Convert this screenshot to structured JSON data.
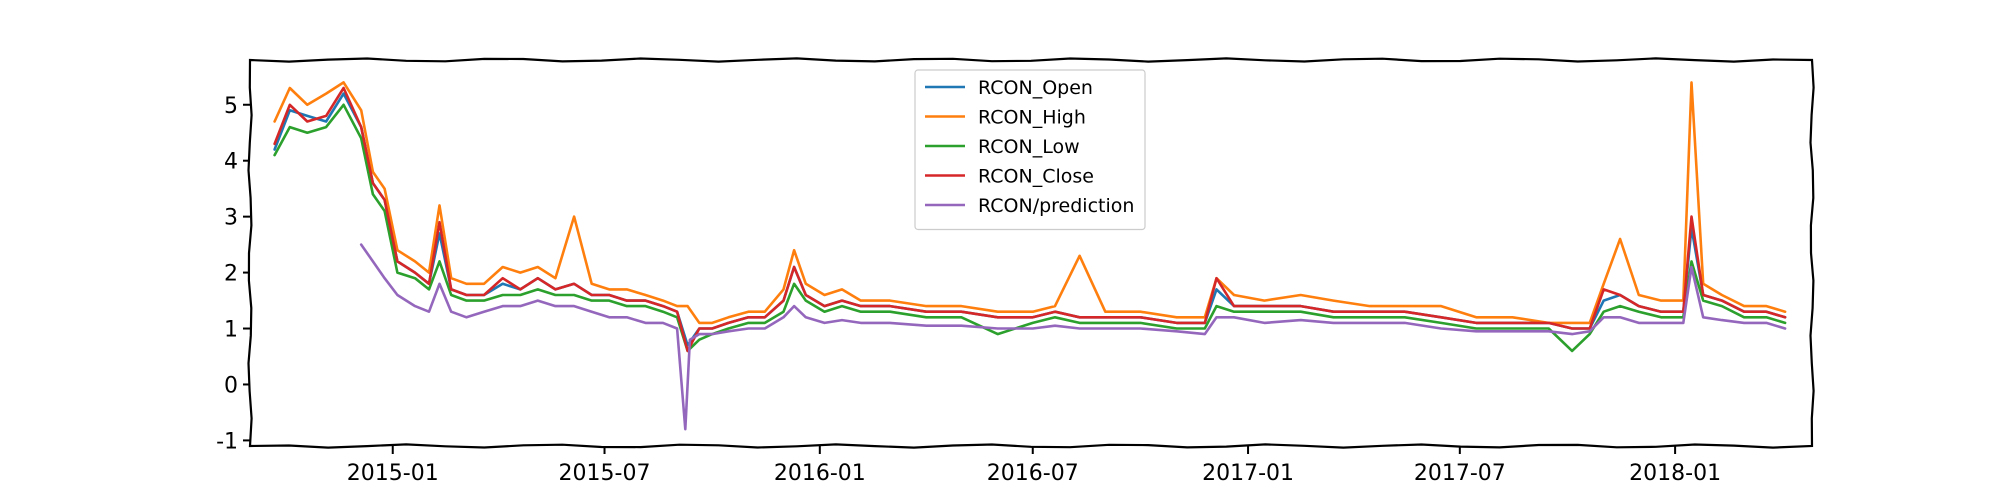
{
  "chart_data": {
    "type": "line",
    "title": "",
    "xlabel": "",
    "ylabel": "",
    "x_axis_type": "date",
    "xlim": [
      "2014-09-01",
      "2018-04-28"
    ],
    "ylim": [
      -1.1,
      5.8
    ],
    "x_ticks": [
      "2015-01",
      "2015-07",
      "2016-01",
      "2016-07",
      "2017-01",
      "2017-07",
      "2018-01"
    ],
    "y_ticks": [
      -1,
      0,
      1,
      2,
      3,
      4,
      5
    ],
    "grid": false,
    "legend_position": "top-center",
    "style": "hand-drawn",
    "series": [
      {
        "name": "RCON_Open",
        "color": "#1f77b4",
        "x": [
          "2014-09-22",
          "2014-10-05",
          "2014-10-20",
          "2014-11-05",
          "2014-11-20",
          "2014-12-05",
          "2014-12-15",
          "2014-12-25",
          "2015-01-05",
          "2015-01-20",
          "2015-02-01",
          "2015-02-10",
          "2015-02-20",
          "2015-03-05",
          "2015-03-20",
          "2015-04-05",
          "2015-04-20",
          "2015-05-05",
          "2015-05-20",
          "2015-06-05",
          "2015-06-20",
          "2015-07-05",
          "2015-07-20",
          "2015-08-05",
          "2015-08-20",
          "2015-09-01",
          "2015-09-10",
          "2015-09-20",
          "2015-10-01",
          "2015-10-15",
          "2015-11-01",
          "2015-11-15",
          "2015-12-01",
          "2015-12-10",
          "2015-12-20",
          "2016-01-05",
          "2016-01-20",
          "2016-02-05",
          "2016-03-01",
          "2016-04-01",
          "2016-05-01",
          "2016-06-01",
          "2016-07-01",
          "2016-07-20",
          "2016-08-10",
          "2016-09-01",
          "2016-10-01",
          "2016-11-01",
          "2016-11-25",
          "2016-12-05",
          "2016-12-20",
          "2017-01-15",
          "2017-02-15",
          "2017-03-15",
          "2017-04-15",
          "2017-05-15",
          "2017-06-15",
          "2017-07-15",
          "2017-08-15",
          "2017-09-15",
          "2017-10-05",
          "2017-10-20",
          "2017-11-01",
          "2017-11-15",
          "2017-12-01",
          "2017-12-20",
          "2018-01-08",
          "2018-01-15",
          "2018-01-25",
          "2018-02-10",
          "2018-03-01",
          "2018-03-20",
          "2018-04-05"
        ],
        "values": [
          4.2,
          4.9,
          4.8,
          4.7,
          5.2,
          4.6,
          3.6,
          3.3,
          2.2,
          2.0,
          1.8,
          2.7,
          1.7,
          1.6,
          1.6,
          1.8,
          1.7,
          1.9,
          1.7,
          1.8,
          1.6,
          1.6,
          1.5,
          1.5,
          1.4,
          1.3,
          0.7,
          1.0,
          1.0,
          1.1,
          1.2,
          1.2,
          1.5,
          2.1,
          1.6,
          1.4,
          1.5,
          1.4,
          1.4,
          1.3,
          1.3,
          1.2,
          1.2,
          1.3,
          1.2,
          1.2,
          1.2,
          1.1,
          1.1,
          1.7,
          1.4,
          1.4,
          1.4,
          1.3,
          1.3,
          1.3,
          1.2,
          1.1,
          1.1,
          1.1,
          1.0,
          1.0,
          1.5,
          1.6,
          1.4,
          1.3,
          1.3,
          2.8,
          1.6,
          1.5,
          1.3,
          1.3,
          1.2
        ]
      },
      {
        "name": "RCON_High",
        "color": "#ff7f0e",
        "x": [
          "2014-09-22",
          "2014-10-05",
          "2014-10-20",
          "2014-11-05",
          "2014-11-20",
          "2014-12-05",
          "2014-12-15",
          "2014-12-25",
          "2015-01-05",
          "2015-01-20",
          "2015-02-01",
          "2015-02-10",
          "2015-02-20",
          "2015-03-05",
          "2015-03-20",
          "2015-04-05",
          "2015-04-20",
          "2015-05-05",
          "2015-05-20",
          "2015-06-05",
          "2015-06-20",
          "2015-07-05",
          "2015-07-20",
          "2015-08-05",
          "2015-08-20",
          "2015-09-01",
          "2015-09-10",
          "2015-09-20",
          "2015-10-01",
          "2015-10-15",
          "2015-11-01",
          "2015-11-15",
          "2015-12-01",
          "2015-12-10",
          "2015-12-20",
          "2016-01-05",
          "2016-01-20",
          "2016-02-05",
          "2016-03-01",
          "2016-04-01",
          "2016-05-01",
          "2016-06-01",
          "2016-07-01",
          "2016-07-20",
          "2016-08-10",
          "2016-09-01",
          "2016-10-01",
          "2016-11-01",
          "2016-11-25",
          "2016-12-05",
          "2016-12-20",
          "2017-01-15",
          "2017-02-15",
          "2017-03-15",
          "2017-04-15",
          "2017-05-15",
          "2017-06-15",
          "2017-07-15",
          "2017-08-15",
          "2017-09-15",
          "2017-10-05",
          "2017-10-20",
          "2017-11-01",
          "2017-11-15",
          "2017-12-01",
          "2017-12-20",
          "2018-01-08",
          "2018-01-15",
          "2018-01-25",
          "2018-02-10",
          "2018-03-01",
          "2018-03-20",
          "2018-04-05"
        ],
        "values": [
          4.7,
          5.3,
          5.0,
          5.2,
          5.4,
          4.9,
          3.8,
          3.5,
          2.4,
          2.2,
          2.0,
          3.2,
          1.9,
          1.8,
          1.8,
          2.1,
          2.0,
          2.1,
          1.9,
          3.0,
          1.8,
          1.7,
          1.7,
          1.6,
          1.5,
          1.4,
          1.4,
          1.1,
          1.1,
          1.2,
          1.3,
          1.3,
          1.7,
          2.4,
          1.8,
          1.6,
          1.7,
          1.5,
          1.5,
          1.4,
          1.4,
          1.3,
          1.3,
          1.4,
          2.3,
          1.3,
          1.3,
          1.2,
          1.2,
          1.9,
          1.6,
          1.5,
          1.6,
          1.5,
          1.4,
          1.4,
          1.4,
          1.2,
          1.2,
          1.1,
          1.1,
          1.1,
          1.8,
          2.6,
          1.6,
          1.5,
          1.5,
          5.4,
          1.8,
          1.6,
          1.4,
          1.4,
          1.3
        ]
      },
      {
        "name": "RCON_Low",
        "color": "#2ca02c",
        "x": [
          "2014-09-22",
          "2014-10-05",
          "2014-10-20",
          "2014-11-05",
          "2014-11-20",
          "2014-12-05",
          "2014-12-15",
          "2014-12-25",
          "2015-01-05",
          "2015-01-20",
          "2015-02-01",
          "2015-02-10",
          "2015-02-20",
          "2015-03-05",
          "2015-03-20",
          "2015-04-05",
          "2015-04-20",
          "2015-05-05",
          "2015-05-20",
          "2015-06-05",
          "2015-06-20",
          "2015-07-05",
          "2015-07-20",
          "2015-08-05",
          "2015-08-20",
          "2015-09-01",
          "2015-09-10",
          "2015-09-20",
          "2015-10-01",
          "2015-10-15",
          "2015-11-01",
          "2015-11-15",
          "2015-12-01",
          "2015-12-10",
          "2015-12-20",
          "2016-01-05",
          "2016-01-20",
          "2016-02-05",
          "2016-03-01",
          "2016-04-01",
          "2016-05-01",
          "2016-06-01",
          "2016-07-01",
          "2016-07-20",
          "2016-08-10",
          "2016-09-01",
          "2016-10-01",
          "2016-11-01",
          "2016-11-25",
          "2016-12-05",
          "2016-12-20",
          "2017-01-15",
          "2017-02-15",
          "2017-03-15",
          "2017-04-15",
          "2017-05-15",
          "2017-06-15",
          "2017-07-15",
          "2017-08-15",
          "2017-09-15",
          "2017-10-05",
          "2017-10-20",
          "2017-11-01",
          "2017-11-15",
          "2017-12-01",
          "2017-12-20",
          "2018-01-08",
          "2018-01-15",
          "2018-01-25",
          "2018-02-10",
          "2018-03-01",
          "2018-03-20",
          "2018-04-05"
        ],
        "values": [
          4.1,
          4.6,
          4.5,
          4.6,
          5.0,
          4.4,
          3.4,
          3.1,
          2.0,
          1.9,
          1.7,
          2.2,
          1.6,
          1.5,
          1.5,
          1.6,
          1.6,
          1.7,
          1.6,
          1.6,
          1.5,
          1.5,
          1.4,
          1.4,
          1.3,
          1.2,
          0.6,
          0.8,
          0.9,
          1.0,
          1.1,
          1.1,
          1.3,
          1.8,
          1.5,
          1.3,
          1.4,
          1.3,
          1.3,
          1.2,
          1.2,
          0.9,
          1.1,
          1.2,
          1.1,
          1.1,
          1.1,
          1.0,
          1.0,
          1.4,
          1.3,
          1.3,
          1.3,
          1.2,
          1.2,
          1.2,
          1.1,
          1.0,
          1.0,
          1.0,
          0.6,
          0.9,
          1.3,
          1.4,
          1.3,
          1.2,
          1.2,
          2.2,
          1.5,
          1.4,
          1.2,
          1.2,
          1.1
        ]
      },
      {
        "name": "RCON_Close",
        "color": "#d62728",
        "x": [
          "2014-09-22",
          "2014-10-05",
          "2014-10-20",
          "2014-11-05",
          "2014-11-20",
          "2014-12-05",
          "2014-12-15",
          "2014-12-25",
          "2015-01-05",
          "2015-01-20",
          "2015-02-01",
          "2015-02-10",
          "2015-02-20",
          "2015-03-05",
          "2015-03-20",
          "2015-04-05",
          "2015-04-20",
          "2015-05-05",
          "2015-05-20",
          "2015-06-05",
          "2015-06-20",
          "2015-07-05",
          "2015-07-20",
          "2015-08-05",
          "2015-08-20",
          "2015-09-01",
          "2015-09-10",
          "2015-09-20",
          "2015-10-01",
          "2015-10-15",
          "2015-11-01",
          "2015-11-15",
          "2015-12-01",
          "2015-12-10",
          "2015-12-20",
          "2016-01-05",
          "2016-01-20",
          "2016-02-05",
          "2016-03-01",
          "2016-04-01",
          "2016-05-01",
          "2016-06-01",
          "2016-07-01",
          "2016-07-20",
          "2016-08-10",
          "2016-09-01",
          "2016-10-01",
          "2016-11-01",
          "2016-11-25",
          "2016-12-05",
          "2016-12-20",
          "2017-01-15",
          "2017-02-15",
          "2017-03-15",
          "2017-04-15",
          "2017-05-15",
          "2017-06-15",
          "2017-07-15",
          "2017-08-15",
          "2017-09-15",
          "2017-10-05",
          "2017-10-20",
          "2017-11-01",
          "2017-11-15",
          "2017-12-01",
          "2017-12-20",
          "2018-01-08",
          "2018-01-15",
          "2018-01-25",
          "2018-02-10",
          "2018-03-01",
          "2018-03-20",
          "2018-04-05"
        ],
        "values": [
          4.3,
          5.0,
          4.7,
          4.8,
          5.3,
          4.6,
          3.6,
          3.3,
          2.2,
          2.0,
          1.8,
          2.9,
          1.7,
          1.6,
          1.6,
          1.9,
          1.7,
          1.9,
          1.7,
          1.8,
          1.6,
          1.6,
          1.5,
          1.5,
          1.4,
          1.3,
          0.6,
          1.0,
          1.0,
          1.1,
          1.2,
          1.2,
          1.5,
          2.1,
          1.6,
          1.4,
          1.5,
          1.4,
          1.4,
          1.3,
          1.3,
          1.2,
          1.2,
          1.3,
          1.2,
          1.2,
          1.2,
          1.1,
          1.1,
          1.9,
          1.4,
          1.4,
          1.4,
          1.3,
          1.3,
          1.3,
          1.2,
          1.1,
          1.1,
          1.1,
          1.0,
          1.0,
          1.7,
          1.6,
          1.4,
          1.3,
          1.3,
          3.0,
          1.6,
          1.5,
          1.3,
          1.3,
          1.2
        ]
      },
      {
        "name": "RCON/prediction",
        "color": "#9467bd",
        "x": [
          "2014-12-05",
          "2014-12-15",
          "2014-12-25",
          "2015-01-05",
          "2015-01-20",
          "2015-02-01",
          "2015-02-10",
          "2015-02-20",
          "2015-03-05",
          "2015-03-20",
          "2015-04-05",
          "2015-04-20",
          "2015-05-05",
          "2015-05-20",
          "2015-06-05",
          "2015-06-20",
          "2015-07-05",
          "2015-07-20",
          "2015-08-05",
          "2015-08-20",
          "2015-09-01",
          "2015-09-08",
          "2015-09-12",
          "2015-09-20",
          "2015-10-01",
          "2015-10-15",
          "2015-11-01",
          "2015-11-15",
          "2015-12-01",
          "2015-12-10",
          "2015-12-20",
          "2016-01-05",
          "2016-01-20",
          "2016-02-05",
          "2016-03-01",
          "2016-04-01",
          "2016-05-01",
          "2016-06-01",
          "2016-07-01",
          "2016-07-20",
          "2016-08-10",
          "2016-09-01",
          "2016-10-01",
          "2016-11-01",
          "2016-11-25",
          "2016-12-05",
          "2016-12-20",
          "2017-01-15",
          "2017-02-15",
          "2017-03-15",
          "2017-04-15",
          "2017-05-15",
          "2017-06-15",
          "2017-07-15",
          "2017-08-15",
          "2017-09-15",
          "2017-10-05",
          "2017-10-20",
          "2017-11-01",
          "2017-11-15",
          "2017-12-01",
          "2017-12-20",
          "2018-01-08",
          "2018-01-15",
          "2018-01-25",
          "2018-02-10",
          "2018-03-01",
          "2018-03-20",
          "2018-04-05"
        ],
        "values": [
          2.5,
          2.2,
          1.9,
          1.6,
          1.4,
          1.3,
          1.8,
          1.3,
          1.2,
          1.3,
          1.4,
          1.4,
          1.5,
          1.4,
          1.4,
          1.3,
          1.2,
          1.2,
          1.1,
          1.1,
          1.0,
          -0.8,
          0.8,
          0.9,
          0.9,
          0.95,
          1.0,
          1.0,
          1.2,
          1.4,
          1.2,
          1.1,
          1.15,
          1.1,
          1.1,
          1.05,
          1.05,
          1.0,
          1.0,
          1.05,
          1.0,
          1.0,
          1.0,
          0.95,
          0.9,
          1.2,
          1.2,
          1.1,
          1.15,
          1.1,
          1.1,
          1.1,
          1.0,
          0.95,
          0.95,
          0.95,
          0.9,
          0.95,
          1.2,
          1.2,
          1.1,
          1.1,
          1.1,
          2.1,
          1.2,
          1.15,
          1.1,
          1.1,
          1.0
        ]
      }
    ]
  }
}
